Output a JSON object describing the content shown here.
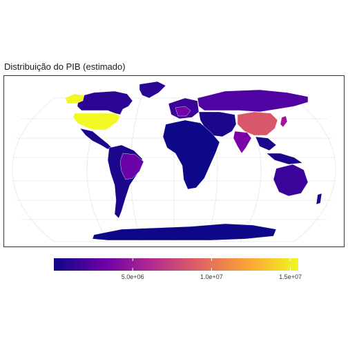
{
  "title": "Distribuição do PIB (estimado)",
  "legend": {
    "colors": [
      "#0d0887",
      "#6a00a8",
      "#b12a90",
      "#e16462",
      "#fca636",
      "#f0f921"
    ],
    "min": 0,
    "max": 15500000,
    "ticks": [
      {
        "value": 5000000,
        "label": "5.0e+06"
      },
      {
        "value": 10000000,
        "label": "1.0e+07"
      },
      {
        "value": 15000000,
        "label": "1.5e+07"
      }
    ]
  },
  "map": {
    "projection": "Robinson",
    "regions": [
      {
        "name": "North America (Canada, Greenland)",
        "color": "#2b0594"
      },
      {
        "name": "Alaska",
        "color": "#f0f921"
      },
      {
        "name": "United States",
        "color": "#f0f921"
      },
      {
        "name": "Central America / Mexico",
        "color": "#1a078b"
      },
      {
        "name": "South America",
        "color": "#1a078b"
      },
      {
        "name": "Brazil",
        "color": "#6a00a8"
      },
      {
        "name": "Europe",
        "color": "#3a049a"
      },
      {
        "name": "Germany / France / UK",
        "color": "#7301a8"
      },
      {
        "name": "Russia",
        "color": "#5102a3"
      },
      {
        "name": "Africa",
        "color": "#0d0887"
      },
      {
        "name": "Middle East",
        "color": "#1a078b"
      },
      {
        "name": "China",
        "color": "#d8576b"
      },
      {
        "name": "India",
        "color": "#7c02a7"
      },
      {
        "name": "Japan",
        "color": "#9c179e"
      },
      {
        "name": "Southeast Asia",
        "color": "#1a078b"
      },
      {
        "name": "Australia",
        "color": "#3a049a"
      },
      {
        "name": "Antarctica",
        "color": "#0d0887"
      }
    ]
  }
}
